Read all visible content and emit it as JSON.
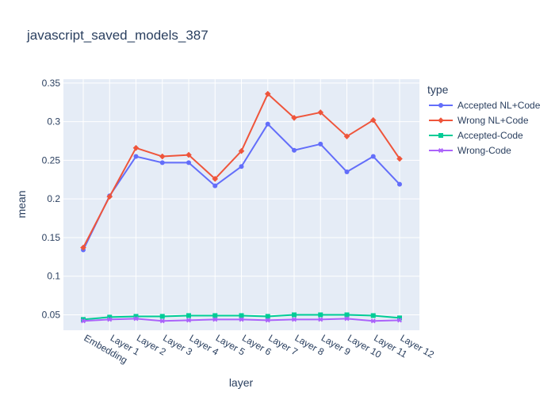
{
  "chart_data": {
    "type": "line",
    "title": "javascript_saved_models_387",
    "xlabel": "layer",
    "ylabel": "mean",
    "ylim": [
      0.03,
      0.355
    ],
    "yticks": [
      0.05,
      0.1,
      0.15,
      0.2,
      0.25,
      0.3,
      0.35
    ],
    "ytick_labels": [
      "0.05",
      "0.1",
      "0.15",
      "0.2",
      "0.25",
      "0.3",
      "0.35"
    ],
    "grid": true,
    "legend_title": "type",
    "legend_position": "right",
    "categories": [
      "Embedding",
      "Layer 1",
      "Layer 2",
      "Layer 3",
      "Layer 4",
      "Layer 5",
      "Layer 6",
      "Layer 7",
      "Layer 8",
      "Layer 9",
      "Layer 10",
      "Layer 11",
      "Layer 12"
    ],
    "series": [
      {
        "name": "Accepted NL+Code",
        "color": "#636efa",
        "marker": "circle",
        "values": [
          0.134,
          0.204,
          0.255,
          0.247,
          0.247,
          0.217,
          0.242,
          0.297,
          0.263,
          0.271,
          0.235,
          0.255,
          0.219
        ]
      },
      {
        "name": "Wrong NL+Code",
        "color": "#ef553b",
        "marker": "diamond",
        "values": [
          0.137,
          0.203,
          0.266,
          0.255,
          0.257,
          0.226,
          0.262,
          0.336,
          0.305,
          0.312,
          0.281,
          0.302,
          0.252
        ]
      },
      {
        "name": "Accepted-Code",
        "color": "#00cc96",
        "marker": "square",
        "values": [
          0.044,
          0.047,
          0.048,
          0.048,
          0.049,
          0.049,
          0.049,
          0.048,
          0.05,
          0.05,
          0.05,
          0.049,
          0.046
        ]
      },
      {
        "name": "Wrong-Code",
        "color": "#ab63fa",
        "marker": "x",
        "values": [
          0.042,
          0.044,
          0.045,
          0.042,
          0.043,
          0.044,
          0.044,
          0.043,
          0.044,
          0.044,
          0.045,
          0.042,
          0.043
        ]
      }
    ]
  }
}
